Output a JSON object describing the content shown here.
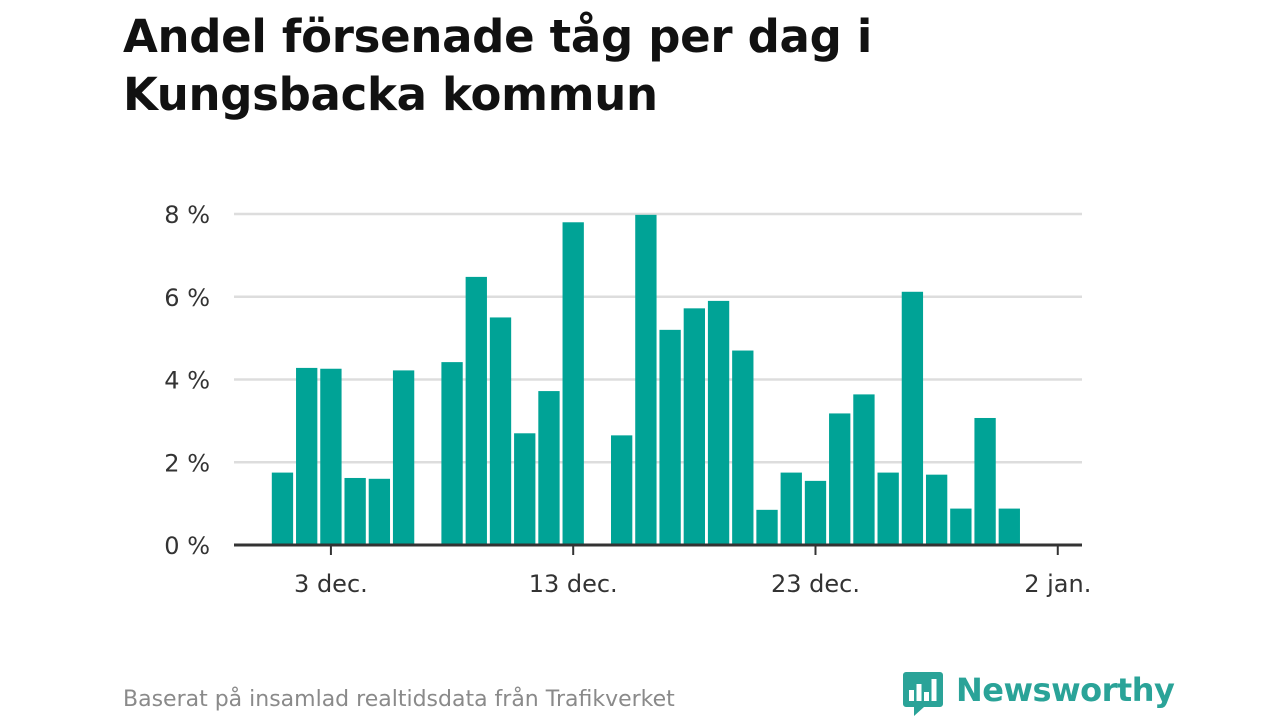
{
  "title": "Andel försenade tåg per dag i Kungsbacka kommun",
  "footer": "Baserat på insamlad realtidsdata från Trafikverket",
  "brand": {
    "name": "Newsworthy",
    "color": "#2aa398"
  },
  "colors": {
    "bar": "#00a396",
    "grid": "#dddddd",
    "axis": "#333333"
  },
  "chart_data": {
    "type": "bar",
    "title": "Andel försenade tåg per dag i Kungsbacka kommun",
    "xlabel": "",
    "ylabel": "",
    "ylim": [
      0,
      8
    ],
    "y_ticks": [
      {
        "value": 0,
        "label": "0 %"
      },
      {
        "value": 2,
        "label": "2 %"
      },
      {
        "value": 4,
        "label": "4 %"
      },
      {
        "value": 6,
        "label": "6 %"
      },
      {
        "value": 8,
        "label": "8 %"
      }
    ],
    "x_ticks": [
      {
        "date": "2023-12-03",
        "label": "3 dec."
      },
      {
        "date": "2023-12-13",
        "label": "13 dec."
      },
      {
        "date": "2023-12-23",
        "label": "23 dec."
      },
      {
        "date": "2024-01-02",
        "label": "2 jan."
      }
    ],
    "x_range": [
      "2023-11-29",
      "2024-01-03"
    ],
    "grid": true,
    "categories": [
      "2023-12-01",
      "2023-12-02",
      "2023-12-03",
      "2023-12-04",
      "2023-12-05",
      "2023-12-06",
      "2023-12-07",
      "2023-12-08",
      "2023-12-09",
      "2023-12-10",
      "2023-12-11",
      "2023-12-12",
      "2023-12-13",
      "2023-12-14",
      "2023-12-15",
      "2023-12-16",
      "2023-12-17",
      "2023-12-18",
      "2023-12-19",
      "2023-12-20",
      "2023-12-21",
      "2023-12-22",
      "2023-12-23",
      "2023-12-24",
      "2023-12-25",
      "2023-12-26",
      "2023-12-27",
      "2023-12-28",
      "2023-12-29",
      "2023-12-30",
      "2023-12-31"
    ],
    "values": [
      1.75,
      4.28,
      4.26,
      1.62,
      1.6,
      4.22,
      null,
      4.42,
      6.48,
      5.5,
      2.7,
      3.72,
      7.8,
      null,
      2.65,
      7.98,
      5.2,
      5.72,
      5.9,
      4.7,
      0.85,
      1.75,
      1.55,
      3.18,
      3.64,
      1.75,
      6.12,
      1.7,
      0.88,
      3.07,
      0.88
    ]
  }
}
